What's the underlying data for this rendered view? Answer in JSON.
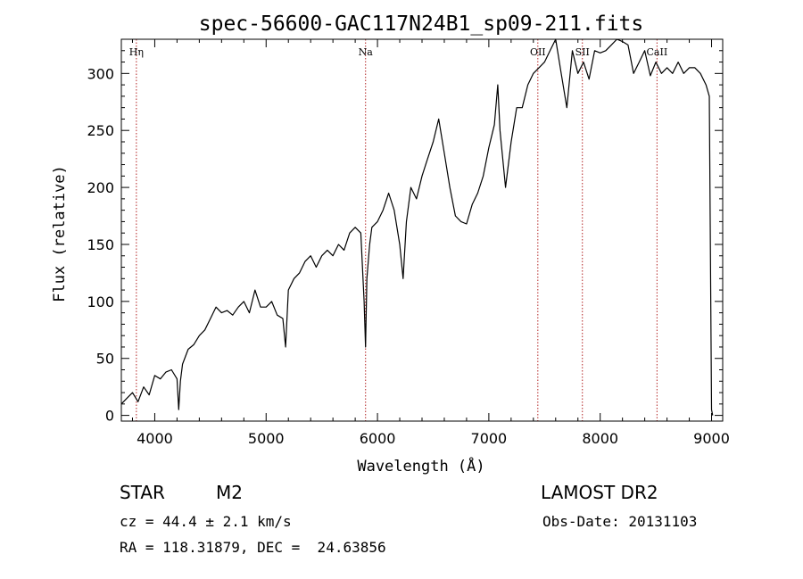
{
  "chart_data": {
    "type": "line",
    "title": "spec-56600-GAC117N24B1_sp09-211.fits",
    "xlabel": "Wavelength (Å)",
    "ylabel": "Flux (relative)",
    "xlim": [
      3700,
      9100
    ],
    "ylim": [
      -5,
      330
    ],
    "xticks": [
      4000,
      5000,
      6000,
      7000,
      8000,
      9000
    ],
    "yticks": [
      0,
      50,
      100,
      150,
      200,
      250,
      300
    ],
    "grid": false,
    "line_color": "#000000",
    "marker_color": "#b22222",
    "spectral_lines": [
      {
        "label": "Hη",
        "x": 3835
      },
      {
        "label": "Na",
        "x": 5893
      },
      {
        "label": "OII",
        "x": 7440
      },
      {
        "label": "SII",
        "x": 7840
      },
      {
        "label": "CaII",
        "x": 8510
      }
    ],
    "series": [
      {
        "x": [
          3700,
          3750,
          3800,
          3850,
          3900,
          3950,
          4000,
          4050,
          4100,
          4150,
          4200,
          4215,
          4230,
          4250,
          4300,
          4350,
          4400,
          4450,
          4500,
          4550,
          4600,
          4650,
          4700,
          4750,
          4800,
          4850,
          4900,
          4950,
          5000,
          5050,
          5100,
          5150,
          5175,
          5200,
          5250,
          5300,
          5350,
          5400,
          5450,
          5500,
          5550,
          5600,
          5650,
          5700,
          5750,
          5800,
          5850,
          5880,
          5893,
          5905,
          5930,
          5950,
          6000,
          6050,
          6100,
          6150,
          6200,
          6230,
          6260,
          6300,
          6350,
          6400,
          6450,
          6500,
          6550,
          6600,
          6650,
          6700,
          6750,
          6800,
          6850,
          6900,
          6950,
          7000,
          7050,
          7080,
          7100,
          7150,
          7200,
          7250,
          7300,
          7350,
          7400,
          7450,
          7500,
          7550,
          7600,
          7650,
          7700,
          7750,
          7800,
          7850,
          7900,
          7950,
          8000,
          8050,
          8100,
          8150,
          8200,
          8250,
          8300,
          8350,
          8400,
          8450,
          8500,
          8550,
          8600,
          8650,
          8700,
          8750,
          8800,
          8850,
          8900,
          8950,
          8980,
          9000,
          9010
        ],
        "values": [
          10,
          15,
          20,
          12,
          25,
          18,
          35,
          32,
          38,
          40,
          32,
          5,
          30,
          45,
          58,
          62,
          70,
          75,
          85,
          95,
          90,
          92,
          88,
          95,
          100,
          90,
          110,
          95,
          95,
          100,
          88,
          85,
          60,
          110,
          120,
          125,
          135,
          140,
          130,
          140,
          145,
          140,
          150,
          145,
          160,
          165,
          160,
          100,
          60,
          120,
          150,
          165,
          170,
          180,
          195,
          180,
          150,
          120,
          170,
          200,
          190,
          210,
          225,
          240,
          260,
          230,
          200,
          175,
          170,
          168,
          185,
          195,
          210,
          235,
          255,
          290,
          250,
          200,
          240,
          270,
          270,
          290,
          300,
          305,
          310,
          320,
          330,
          300,
          270,
          320,
          300,
          310,
          295,
          320,
          318,
          320,
          325,
          330,
          328,
          325,
          300,
          310,
          320,
          298,
          310,
          300,
          305,
          300,
          310,
          300,
          305,
          305,
          300,
          290,
          280,
          5,
          0
        ]
      }
    ]
  },
  "info": {
    "object_type": "STAR",
    "subclass": "M2",
    "survey": "LAMOST DR2",
    "cz": "cz = 44.4 ± 2.1 km/s",
    "obs_date": "Obs-Date: 20131103",
    "coords": "RA = 118.31879, DEC =  24.63856"
  }
}
